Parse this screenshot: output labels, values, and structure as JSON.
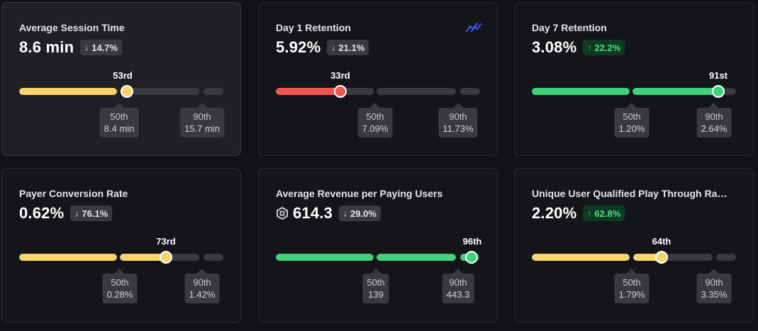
{
  "colors": {
    "yellow": "#f8d26b",
    "red": "#f2564f",
    "green": "#3fd27a",
    "trend_blue": "#3b5bff"
  },
  "cards": [
    {
      "title": "Average Session Time",
      "value": "8.6 min",
      "delta": {
        "direction": "down",
        "arrow": "↓",
        "text": "14.7%"
      },
      "rank": "53rd",
      "bar_color": "yellow",
      "p50": {
        "label": "50th",
        "value": "8.4 min"
      },
      "p90": {
        "label": "90th",
        "value": "15.7 min"
      }
    },
    {
      "title": "Day 1 Retention",
      "value": "5.92%",
      "icon": "trend-line-icon",
      "delta": {
        "direction": "down",
        "arrow": "↓",
        "text": "21.1%"
      },
      "rank": "33rd",
      "bar_color": "red",
      "p50": {
        "label": "50th",
        "value": "7.09%"
      },
      "p90": {
        "label": "90th",
        "value": "11.73%"
      }
    },
    {
      "title": "Day 7 Retention",
      "value": "3.08%",
      "delta": {
        "direction": "up",
        "arrow": "↑",
        "text": "22.2%"
      },
      "rank": "91st",
      "bar_color": "green",
      "p50": {
        "label": "50th",
        "value": "1.20%"
      },
      "p90": {
        "label": "90th",
        "value": "2.64%"
      }
    },
    {
      "title": "Payer Conversion Rate",
      "value": "0.62%",
      "delta": {
        "direction": "down",
        "arrow": "↓",
        "text": "76.1%"
      },
      "rank": "73rd",
      "bar_color": "yellow",
      "p50": {
        "label": "50th",
        "value": "0.28%"
      },
      "p90": {
        "label": "90th",
        "value": "1.42%"
      }
    },
    {
      "title": "Average Revenue per Paying Users",
      "value": "614.3",
      "icon": "robux-icon",
      "delta": {
        "direction": "down",
        "arrow": "↓",
        "text": "29.0%"
      },
      "rank": "96th",
      "bar_color": "green",
      "p50": {
        "label": "50th",
        "value": "139"
      },
      "p90": {
        "label": "90th",
        "value": "443.3"
      }
    },
    {
      "title": "Unique User Qualified Play Through Rate...",
      "value": "2.20%",
      "delta": {
        "direction": "up",
        "arrow": "↑",
        "text": "62.8%"
      },
      "rank": "64th",
      "bar_color": "yellow",
      "p50": {
        "label": "50th",
        "value": "1.79%"
      },
      "p90": {
        "label": "90th",
        "value": "3.35%"
      }
    }
  ]
}
